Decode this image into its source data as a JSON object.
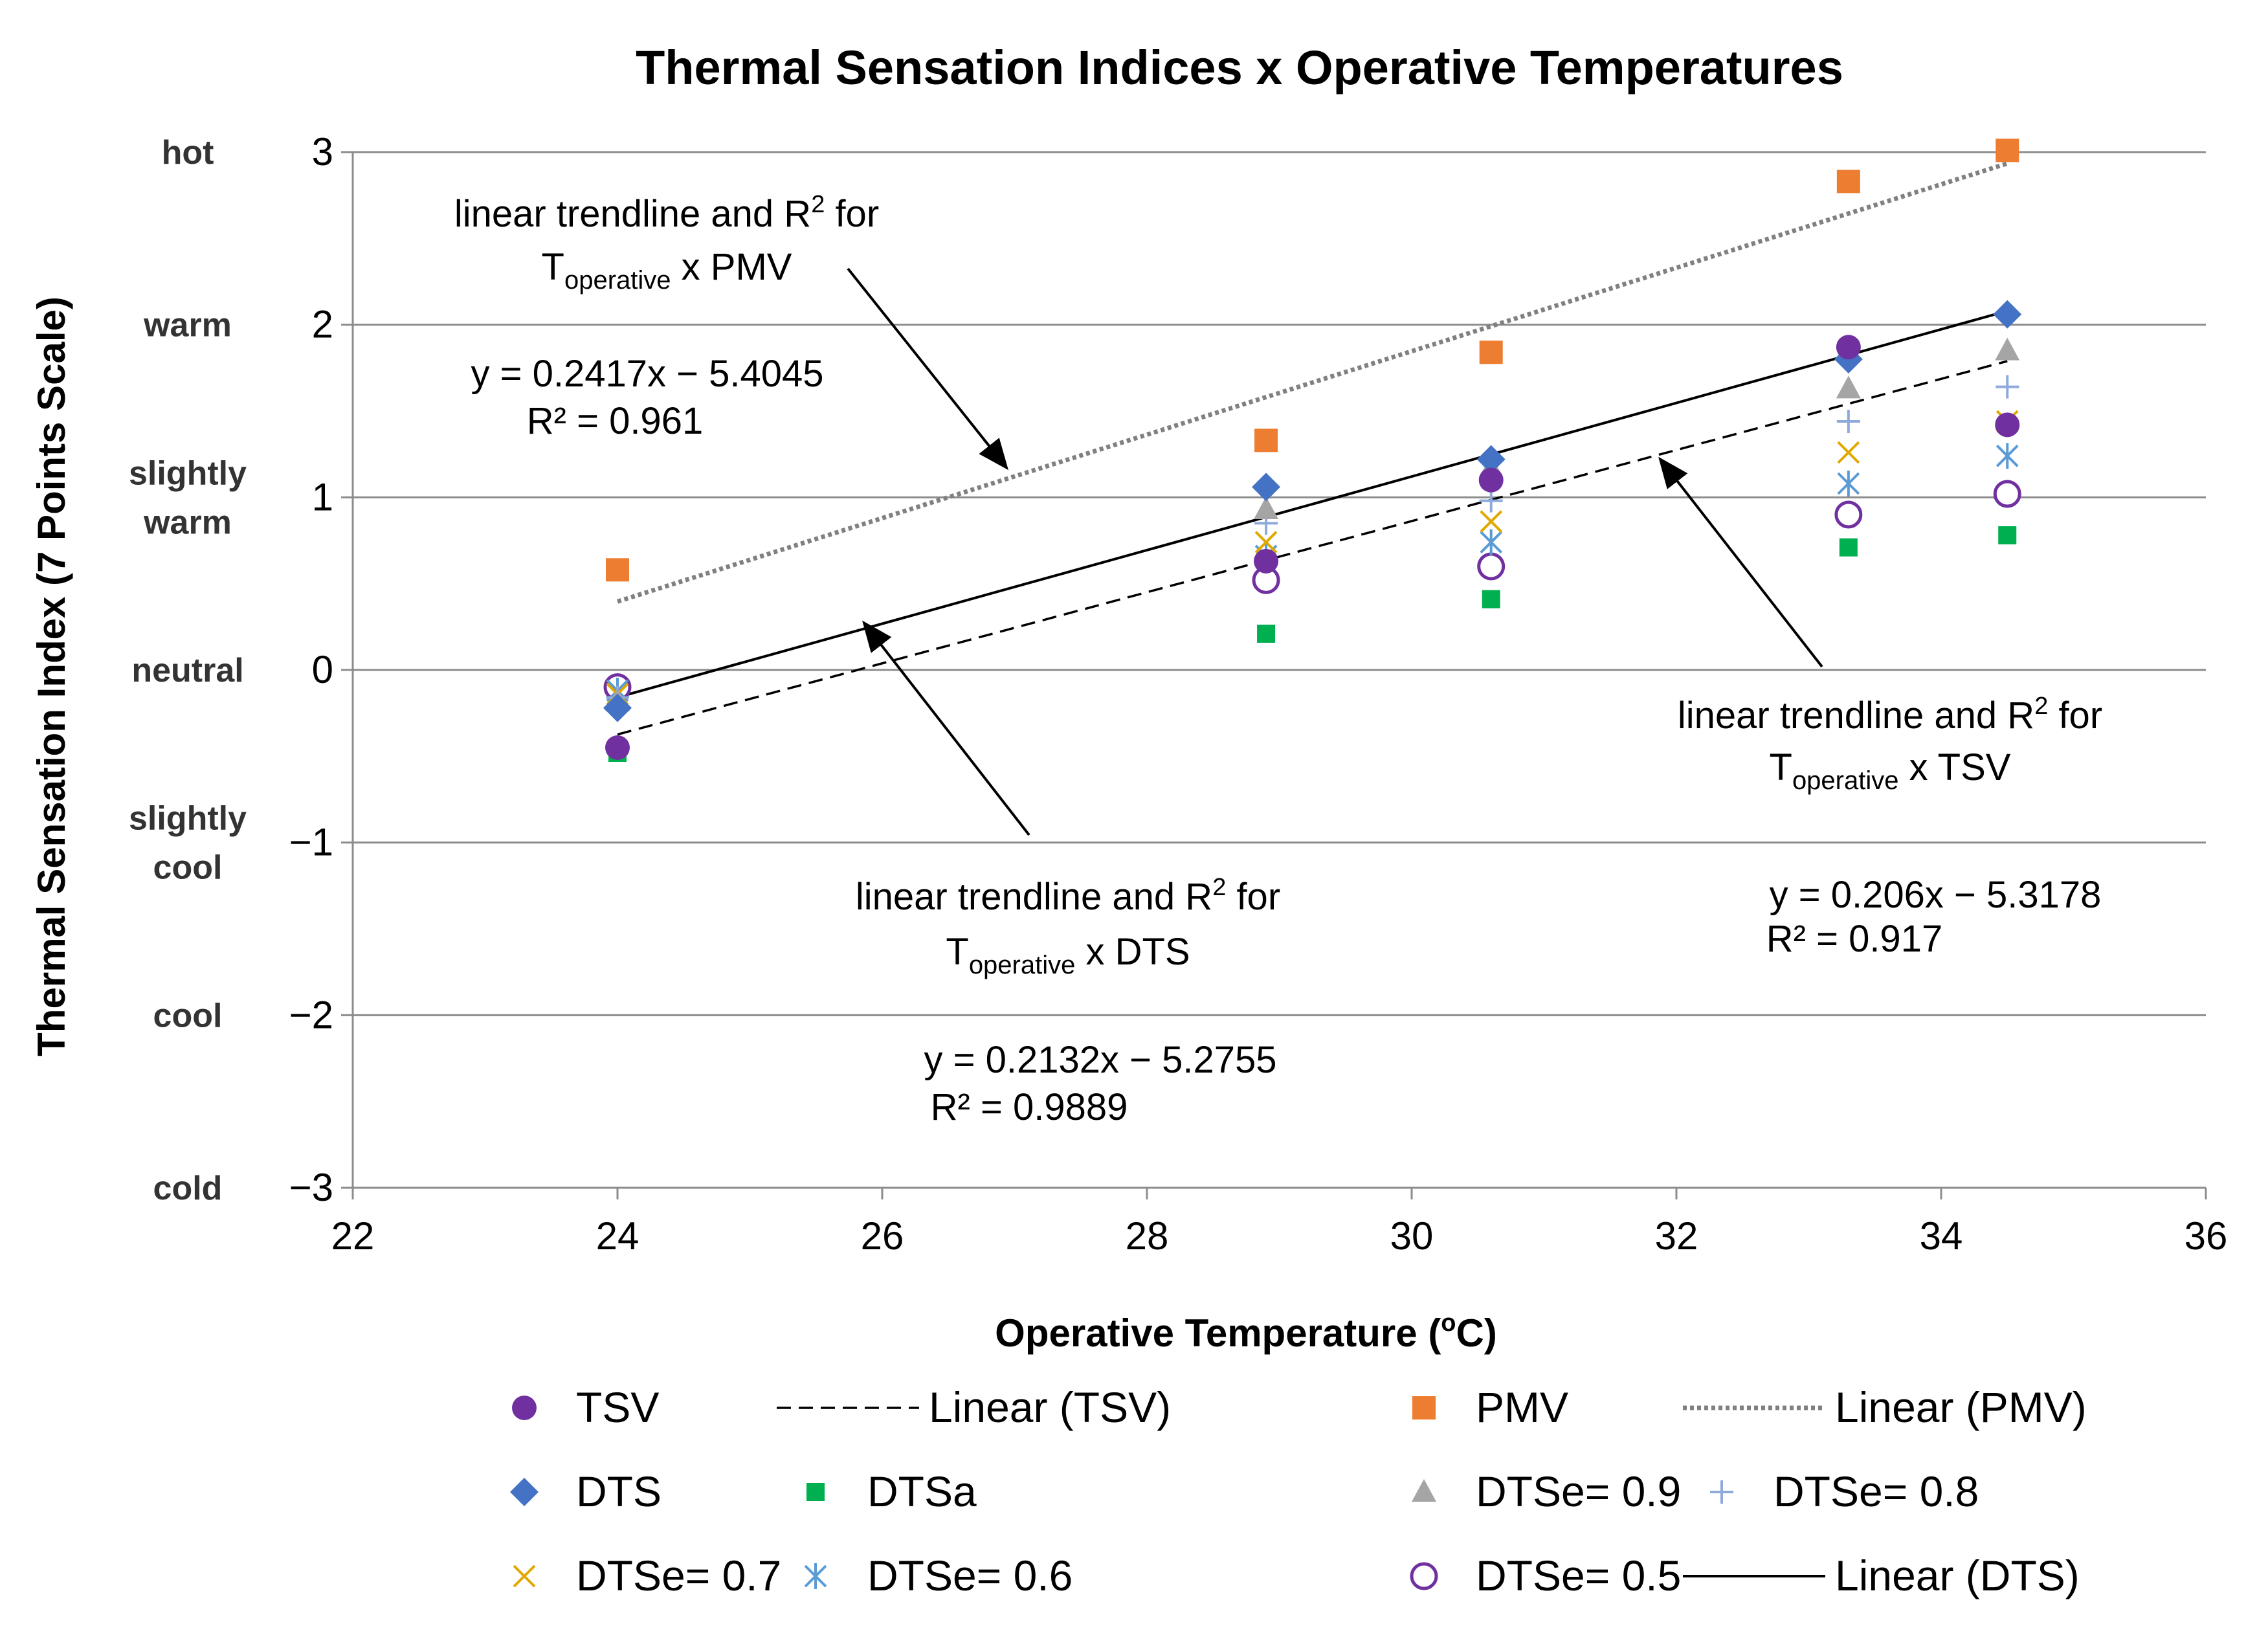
{
  "chart_data": {
    "type": "scatter",
    "title": "Thermal Sensation Indices x Operative Temperatures",
    "xlabel": "Operative Temperature (",
    "xlabel_sup": "o",
    "xlabel_suffix": "C)",
    "ylabel": "Thermal Sensation Index (7 Points Scale)",
    "xlim": [
      22,
      36
    ],
    "ylim": [
      -3,
      3
    ],
    "x_ticks": [
      22,
      24,
      26,
      28,
      30,
      32,
      34,
      36
    ],
    "y_ticks": [
      3,
      2,
      1,
      0,
      -1,
      -2,
      -3
    ],
    "y_tick_labels": [
      "3",
      "2",
      "1",
      "0",
      "−1",
      "−2",
      "−3"
    ],
    "grid": "horizontal",
    "sensation_scale": [
      {
        "lines": [
          "hot"
        ],
        "y": 3
      },
      {
        "lines": [
          "warm"
        ],
        "y": 2
      },
      {
        "lines": [
          "slightly",
          "warm"
        ],
        "y": 1
      },
      {
        "lines": [
          "neutral"
        ],
        "y": 0
      },
      {
        "lines": [
          "slightly",
          "cool"
        ],
        "y": -1
      },
      {
        "lines": [
          "cool"
        ],
        "y": -2
      },
      {
        "lines": [
          "cold"
        ],
        "y": -3
      }
    ],
    "x": [
      24,
      28.9,
      30.6,
      33.3,
      34.5
    ],
    "series": [
      {
        "name": "TSV",
        "marker": "circle",
        "color": "#7030a0",
        "values": [
          -0.45,
          0.63,
          1.1,
          1.87,
          1.42
        ]
      },
      {
        "name": "PMV",
        "marker": "square",
        "color": "#ed7d31",
        "values": [
          0.58,
          1.33,
          1.84,
          2.83,
          3.01
        ]
      },
      {
        "name": "DTS",
        "marker": "diamond",
        "color": "#4472c4",
        "values": [
          -0.22,
          1.06,
          1.22,
          1.8,
          2.06
        ]
      },
      {
        "name": "DTSa",
        "marker": "square-small",
        "color": "#00b050",
        "values": [
          -0.48,
          0.21,
          0.41,
          0.71,
          0.78
        ]
      },
      {
        "name": "DTSe= 0.9",
        "marker": "triangle",
        "color": "#a5a5a5",
        "values": [
          -0.18,
          0.93,
          1.17,
          1.63,
          1.85
        ]
      },
      {
        "name": "DTSe= 0.8",
        "marker": "plus",
        "color": "#8eaadb",
        "values": [
          -0.16,
          0.85,
          0.98,
          1.44,
          1.64
        ]
      },
      {
        "name": "DTSe= 0.7",
        "marker": "x",
        "color": "#e0a800",
        "values": [
          -0.14,
          0.74,
          0.86,
          1.26,
          1.44
        ]
      },
      {
        "name": "DTSe= 0.6",
        "marker": "star",
        "color": "#5b9bd5",
        "values": [
          -0.12,
          0.66,
          0.74,
          1.08,
          1.24
        ]
      },
      {
        "name": "DTSe= 0.5",
        "marker": "circle-open",
        "color": "#7030a0",
        "values": [
          -0.1,
          0.52,
          0.6,
          0.9,
          1.02
        ]
      }
    ],
    "trendlines": [
      {
        "name": "Linear (TSV)",
        "style": "dashed",
        "color": "#000000",
        "x_range": [
          24,
          34.5
        ],
        "slope": 0.206,
        "intercept": -5.3178
      },
      {
        "name": "Linear (PMV)",
        "style": "dotted",
        "color": "#808080",
        "x_range": [
          24,
          34.5
        ],
        "slope": 0.2417,
        "intercept": -5.4045
      },
      {
        "name": "Linear (DTS)",
        "style": "solid",
        "color": "#000000",
        "x_range": [
          24,
          34.5
        ],
        "slope": 0.2132,
        "intercept": -5.2755
      }
    ],
    "annotations": {
      "pmv": {
        "line1": "linear trendline and R",
        "sup": "2",
        "for_text": " for",
        "t_main": "T",
        "t_sub": "operative",
        "t_tail": " x PMV",
        "equation": "y = 0.2417x − 5.4045",
        "r2": "R² = 0.961"
      },
      "tsv": {
        "line1": "linear trendline and R",
        "sup": "2",
        "for_text": " for",
        "t_main": "T",
        "t_sub": "operative",
        "t_tail": " x TSV",
        "equation": "y = 0.206x − 5.3178",
        "r2": "R² = 0.917"
      },
      "dts": {
        "line1": "linear trendline and R",
        "sup": "2",
        "for_text": " for",
        "t_main": "T",
        "t_sub": "operative",
        "t_tail": " x DTS",
        "equation": "y = 0.2132x − 5.2755",
        "r2": "R² = 0.9889"
      }
    },
    "legend": {
      "placement": "bottom",
      "rows": [
        [
          {
            "label": "TSV",
            "key": "circle",
            "color": "#7030a0"
          },
          {
            "label": "Linear (TSV)",
            "key": "dashed",
            "color": "#000000"
          },
          {
            "label": "PMV",
            "key": "square",
            "color": "#ed7d31"
          },
          {
            "label": "Linear (PMV)",
            "key": "dotted",
            "color": "#808080"
          }
        ],
        [
          {
            "label": "DTS",
            "key": "diamond",
            "color": "#4472c4"
          },
          {
            "label": "DTSa",
            "key": "square-small",
            "color": "#00b050"
          },
          {
            "label": "DTSe= 0.9",
            "key": "triangle",
            "color": "#a5a5a5"
          },
          {
            "label": "DTSe= 0.8",
            "key": "plus",
            "color": "#8eaadb"
          }
        ],
        [
          {
            "label": "DTSe= 0.7",
            "key": "x",
            "color": "#e0a800"
          },
          {
            "label": "DTSe= 0.6",
            "key": "star",
            "color": "#5b9bd5"
          },
          {
            "label": "DTSe= 0.5",
            "key": "circle-open",
            "color": "#7030a0"
          },
          {
            "label": "Linear (DTS)",
            "key": "solid",
            "color": "#000000"
          }
        ]
      ]
    }
  }
}
